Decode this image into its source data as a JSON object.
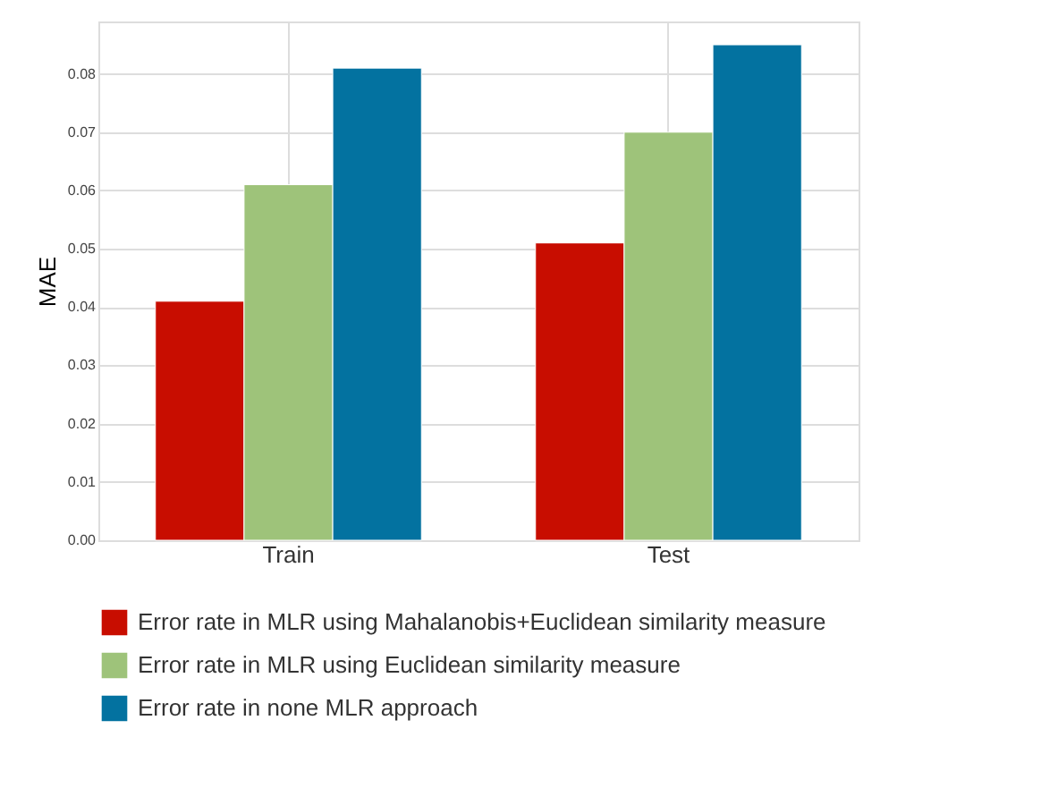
{
  "chart_data": {
    "type": "bar",
    "ylabel": "MAE",
    "categories": [
      "Train",
      "Test"
    ],
    "series": [
      {
        "name": "Error rate in MLR using Mahalanobis+Euclidean similarity measure",
        "color": "#c80d00",
        "values": [
          0.041,
          0.051
        ]
      },
      {
        "name": "Error rate in  MLR using Euclidean similarity measure",
        "color": "#9ec37a",
        "values": [
          0.061,
          0.07
        ]
      },
      {
        "name": "Error rate in none MLR approach",
        "color": "#0372a0",
        "values": [
          0.081,
          0.085
        ]
      }
    ],
    "ylim": [
      0,
      0.089
    ],
    "yticks": [
      {
        "value": 0,
        "label": "0.00"
      },
      {
        "value": 0.01,
        "label": "0.01"
      },
      {
        "value": 0.02,
        "label": "0.02"
      },
      {
        "value": 0.03,
        "label": "0.03"
      },
      {
        "value": 0.04,
        "label": "0.04"
      },
      {
        "value": 0.05,
        "label": "0.05"
      },
      {
        "value": 0.06,
        "label": "0.06"
      },
      {
        "value": 0.07,
        "label": "0.07"
      },
      {
        "value": 0.08,
        "label": "0.08"
      }
    ],
    "grid": true,
    "legend": "bottom"
  }
}
